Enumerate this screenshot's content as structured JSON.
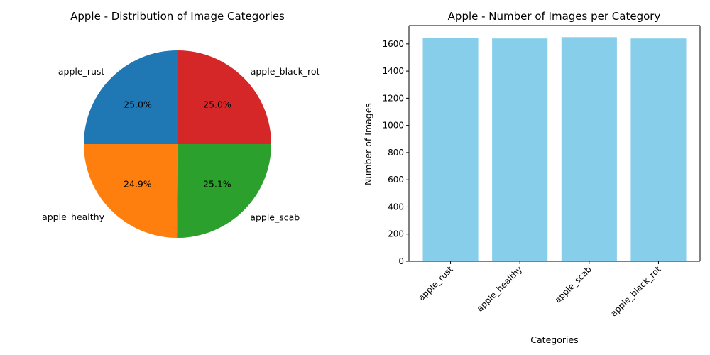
{
  "chart_data": [
    {
      "type": "pie",
      "title": "Apple - Distribution of Image Categories",
      "labels": [
        "apple_rust",
        "apple_healthy",
        "apple_scab",
        "apple_black_rot"
      ],
      "values": [
        25.0,
        24.9,
        25.1,
        25.0
      ],
      "autopct_labels": [
        "25.0%",
        "24.9%",
        "25.1%",
        "25.0%"
      ],
      "colors": [
        "#1f77b4",
        "#ff7f0e",
        "#2ca02c",
        "#d62728"
      ]
    },
    {
      "type": "bar",
      "title": "Apple - Number of Images per Category",
      "xlabel": "Categories",
      "ylabel": "Number of Images",
      "categories": [
        "apple_rust",
        "apple_healthy",
        "apple_scab",
        "apple_black_rot"
      ],
      "values": [
        1645,
        1640,
        1650,
        1640
      ],
      "ylim": [
        0,
        1735
      ],
      "yticks": [
        0,
        200,
        400,
        600,
        800,
        1000,
        1200,
        1400,
        1600
      ],
      "bar_color": "#87ceeb",
      "grid": false
    }
  ]
}
